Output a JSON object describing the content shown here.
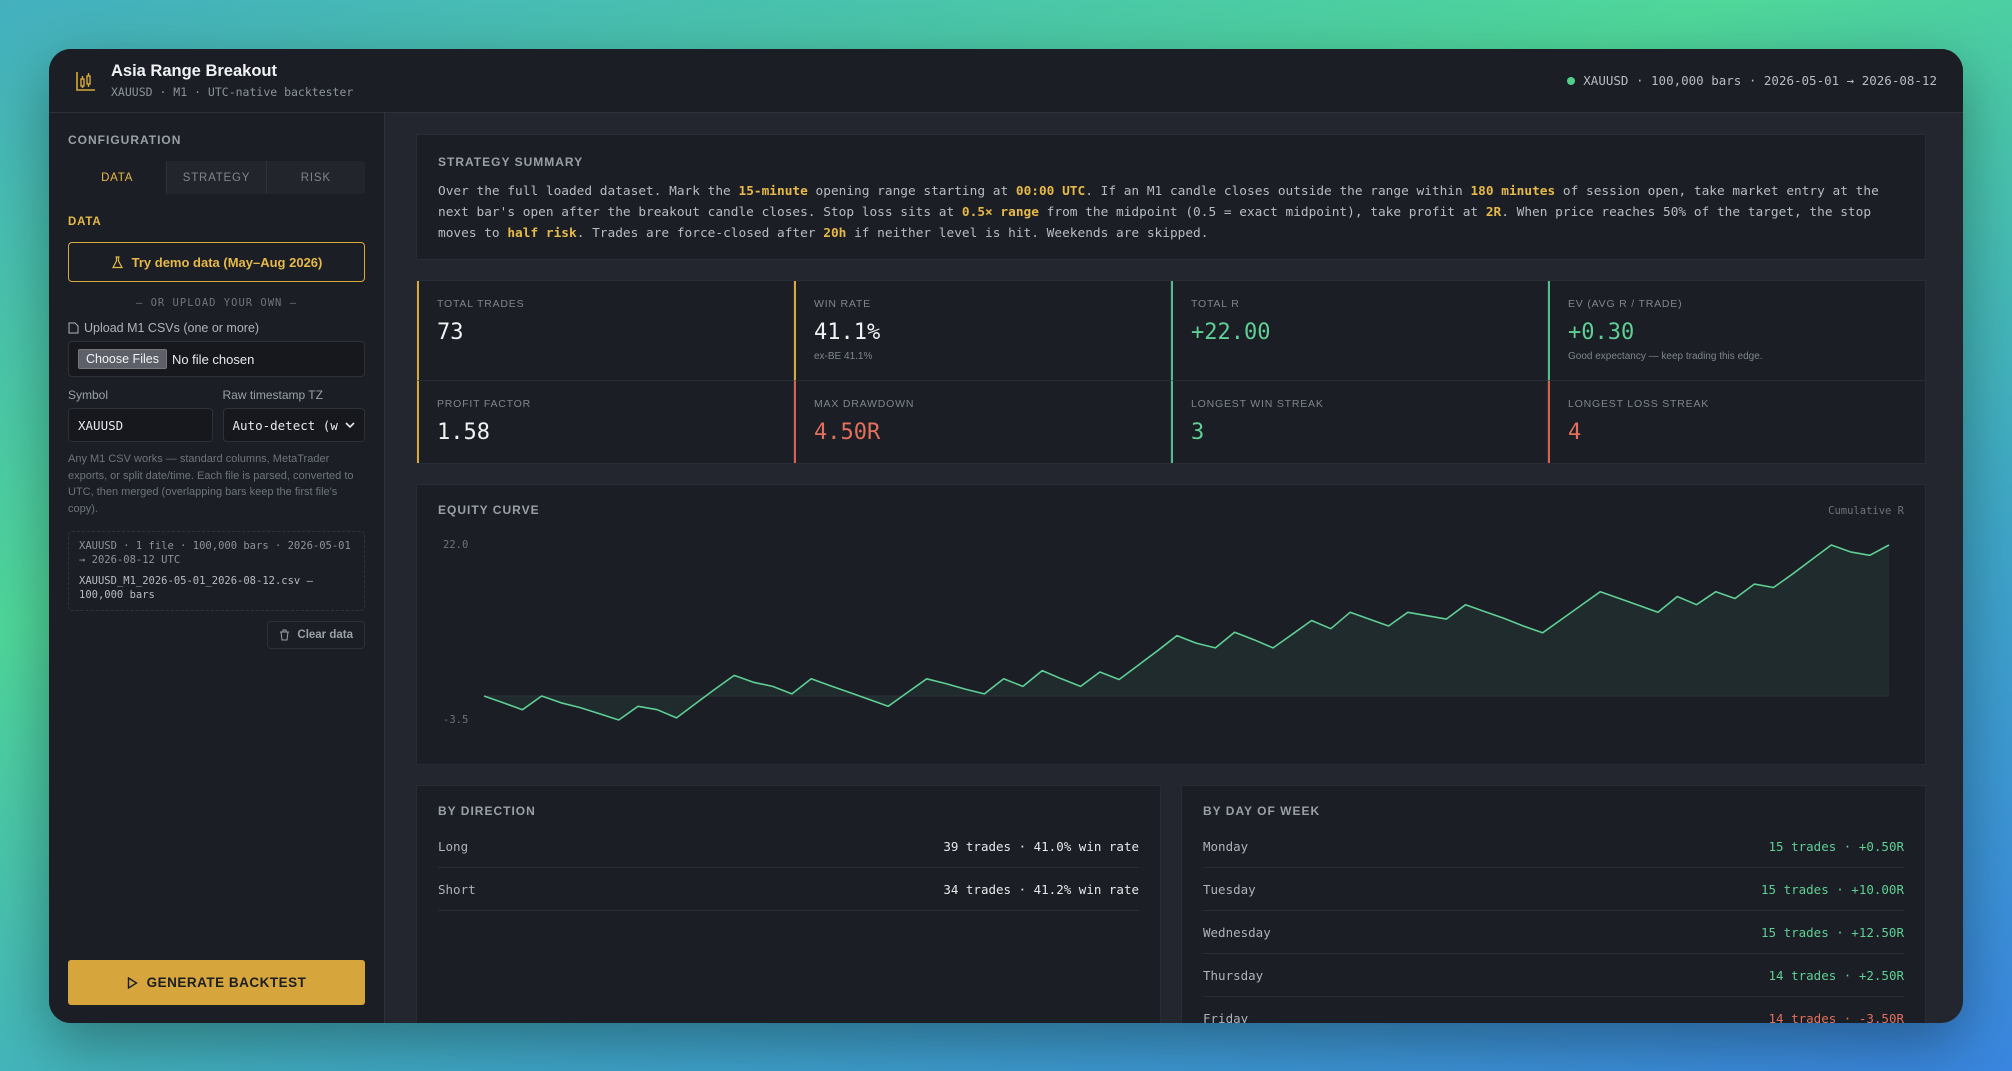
{
  "header": {
    "title": "Asia Range Breakout",
    "subtitle": "XAUUSD · M1 · UTC-native backtester",
    "status": "XAUUSD · 100,000 bars · 2026-05-01 → 2026-08-12"
  },
  "sidebar": {
    "heading": "CONFIGURATION",
    "tabs": [
      "DATA",
      "STRATEGY",
      "RISK"
    ],
    "active_tab": 0,
    "section": "DATA",
    "demo_button": "Try demo data (May–Aug 2026)",
    "divider": "— OR UPLOAD YOUR OWN —",
    "upload_label": "Upload M1 CSVs (one or more)",
    "file_button": "Choose Files",
    "file_status": "No file chosen",
    "symbol_label": "Symbol",
    "symbol_value": "XAUUSD",
    "tz_label": "Raw timestamp TZ",
    "tz_value": "Auto-detect (w",
    "help": "Any M1 CSV works — standard columns, MetaTrader exports, or split date/time. Each file is parsed, converted to UTC, then merged (overlapping bars keep the first file's copy).",
    "files": [
      "XAUUSD · 1 file · 100,000 bars · 2026-05-01 → 2026-08-12 UTC",
      "XAUUSD_M1_2026-05-01_2026-08-12.csv — 100,000 bars"
    ],
    "clear_button": "Clear data",
    "generate_button": "GENERATE BACKTEST"
  },
  "summary": {
    "title": "STRATEGY SUMMARY",
    "segments": [
      {
        "text": "Over the full loaded dataset. Mark the "
      },
      {
        "text": "15-minute",
        "strong": true
      },
      {
        "text": " opening range starting at "
      },
      {
        "text": "00:00 UTC",
        "strong": true
      },
      {
        "text": ". If an M1 candle closes outside the range within "
      },
      {
        "text": "180 minutes",
        "strong": true
      },
      {
        "text": " of session open, take market entry at the next bar's open after the breakout candle closes. Stop loss sits at "
      },
      {
        "text": "0.5× range",
        "strong": true
      },
      {
        "text": " from the midpoint (0.5 = exact midpoint), take profit at "
      },
      {
        "text": "2R",
        "strong": true
      },
      {
        "text": ". When price reaches 50% of the target, the stop moves to "
      },
      {
        "text": "half risk",
        "strong": true
      },
      {
        "text": ". Trades are force-closed after "
      },
      {
        "text": "20h",
        "strong": true
      },
      {
        "text": " if neither level is hit. Weekends are skipped."
      }
    ]
  },
  "metrics": [
    {
      "label": "TOTAL TRADES",
      "value": "73",
      "accent": "#d9a93a",
      "color": "#f1f2f4"
    },
    {
      "label": "WIN RATE",
      "value": "41.1%",
      "note": "ex-BE 41.1%",
      "accent": "#d9a93a",
      "color": "#f1f2f4"
    },
    {
      "label": "TOTAL R",
      "value": "+22.00",
      "accent": "#4fbf8b",
      "color": "#5fcf95"
    },
    {
      "label": "EV (AVG R / TRADE)",
      "value": "+0.30",
      "note": "Good expectancy — keep trading this edge.",
      "accent": "#4fbf8b",
      "color": "#5fcf95"
    },
    {
      "label": "PROFIT FACTOR",
      "value": "1.58",
      "accent": "#d9a93a",
      "color": "#f1f2f4"
    },
    {
      "label": "MAX DRAWDOWN",
      "value": "4.50R",
      "accent": "#d9604f",
      "color": "#e2705c"
    },
    {
      "label": "LONGEST WIN STREAK",
      "value": "3",
      "accent": "#4fbf8b",
      "color": "#5fcf95"
    },
    {
      "label": "LONGEST LOSS STREAK",
      "value": "4",
      "accent": "#d9604f",
      "color": "#e2705c"
    }
  ],
  "equity": {
    "title": "EQUITY CURVE",
    "y_label": "Cumulative R",
    "color": "#5fcf95",
    "values": [
      0,
      -1,
      -2,
      0,
      -1,
      -1.7,
      -2.6,
      -3.5,
      -1.5,
      -2,
      -3.2,
      -1.1,
      1,
      3,
      2,
      1.4,
      0.3,
      2.5,
      1.5,
      0.5,
      -0.5,
      -1.5,
      0.5,
      2.5,
      1.8,
      1,
      0.3,
      2.5,
      1.4,
      3.7,
      2.5,
      1.4,
      3.5,
      2.4,
      4.5,
      6.6,
      8.8,
      7.7,
      7,
      9.3,
      8.2,
      7,
      9,
      11,
      9.8,
      12.2,
      11.2,
      10.2,
      12.2,
      11.7,
      11.2,
      13.3,
      12.3,
      11.3,
      10.2,
      9.2,
      11.2,
      13.2,
      15.2,
      14.2,
      13.2,
      12.2,
      14.5,
      13.3,
      15.2,
      14.2,
      16.3,
      15.8,
      17.8,
      19.9,
      22,
      21,
      20.5,
      22
    ],
    "ylim": [
      -3.5,
      22
    ],
    "yticks": [
      {
        "value": 22,
        "label": "22.0"
      },
      -3.5
    ]
  },
  "by_direction": {
    "title": "BY DIRECTION",
    "rows": [
      {
        "label": "Long",
        "value": "39 trades · 41.0% win rate",
        "color": "#e6e8eb"
      },
      {
        "label": "Short",
        "value": "34 trades · 41.2% win rate",
        "color": "#e6e8eb"
      }
    ]
  },
  "by_day": {
    "title": "BY DAY OF WEEK",
    "rows": [
      {
        "label": "Monday",
        "value": "15 trades · +0.50R",
        "color": "#5fcf95"
      },
      {
        "label": "Tuesday",
        "value": "15 trades · +10.00R",
        "color": "#5fcf95"
      },
      {
        "label": "Wednesday",
        "value": "15 trades · +12.50R",
        "color": "#5fcf95"
      },
      {
        "label": "Thursday",
        "value": "14 trades · +2.50R",
        "color": "#5fcf95"
      },
      {
        "label": "Friday",
        "value": "14 trades · -3.50R",
        "color": "#e2705c"
      }
    ]
  }
}
